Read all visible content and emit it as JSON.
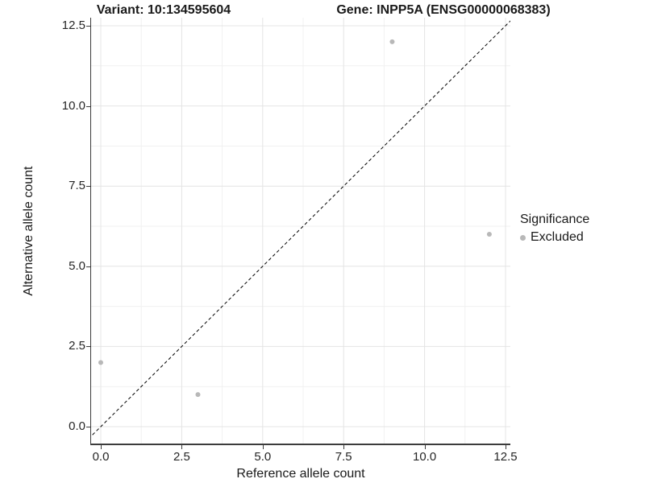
{
  "chart_data": {
    "type": "scatter",
    "title_left": "Variant: 10:134595604",
    "title_right": "Gene: INPP5A (ENSG00000068383)",
    "xlabel": "Reference allele count",
    "ylabel": "Alternative allele count",
    "x_ticks": {
      "values": [
        0,
        2.5,
        5,
        7.5,
        10,
        12.5
      ],
      "labels": [
        "0.0",
        "2.5",
        "5.0",
        "7.5",
        "10.0",
        "12.5"
      ]
    },
    "y_ticks": {
      "values": [
        0,
        2.5,
        5,
        7.5,
        10,
        12.5
      ],
      "labels": [
        "0.0",
        "2.5",
        "5.0",
        "7.5",
        "10.0",
        "12.5"
      ]
    },
    "xlim": [
      -0.3,
      12.65
    ],
    "ylim": [
      -0.53,
      12.75
    ],
    "grid": {
      "major_color": "#e4e4e4",
      "minor_color": "#f1f1f1",
      "minor_values": [
        1.25,
        3.75,
        6.25,
        8.75,
        11.25
      ]
    },
    "identity_line": {
      "type": "y=x",
      "style": "dashed",
      "color": "#000000"
    },
    "series": [
      {
        "name": "Excluded",
        "color": "#b8b8b8",
        "points": [
          {
            "x": 0,
            "y": 2
          },
          {
            "x": 3,
            "y": 1
          },
          {
            "x": 9,
            "y": 12
          },
          {
            "x": 12,
            "y": 6
          }
        ]
      }
    ],
    "legend": {
      "title": "Significance",
      "position": "right",
      "items": [
        {
          "label": "Excluded",
          "color": "#b8b8b8"
        }
      ]
    }
  }
}
